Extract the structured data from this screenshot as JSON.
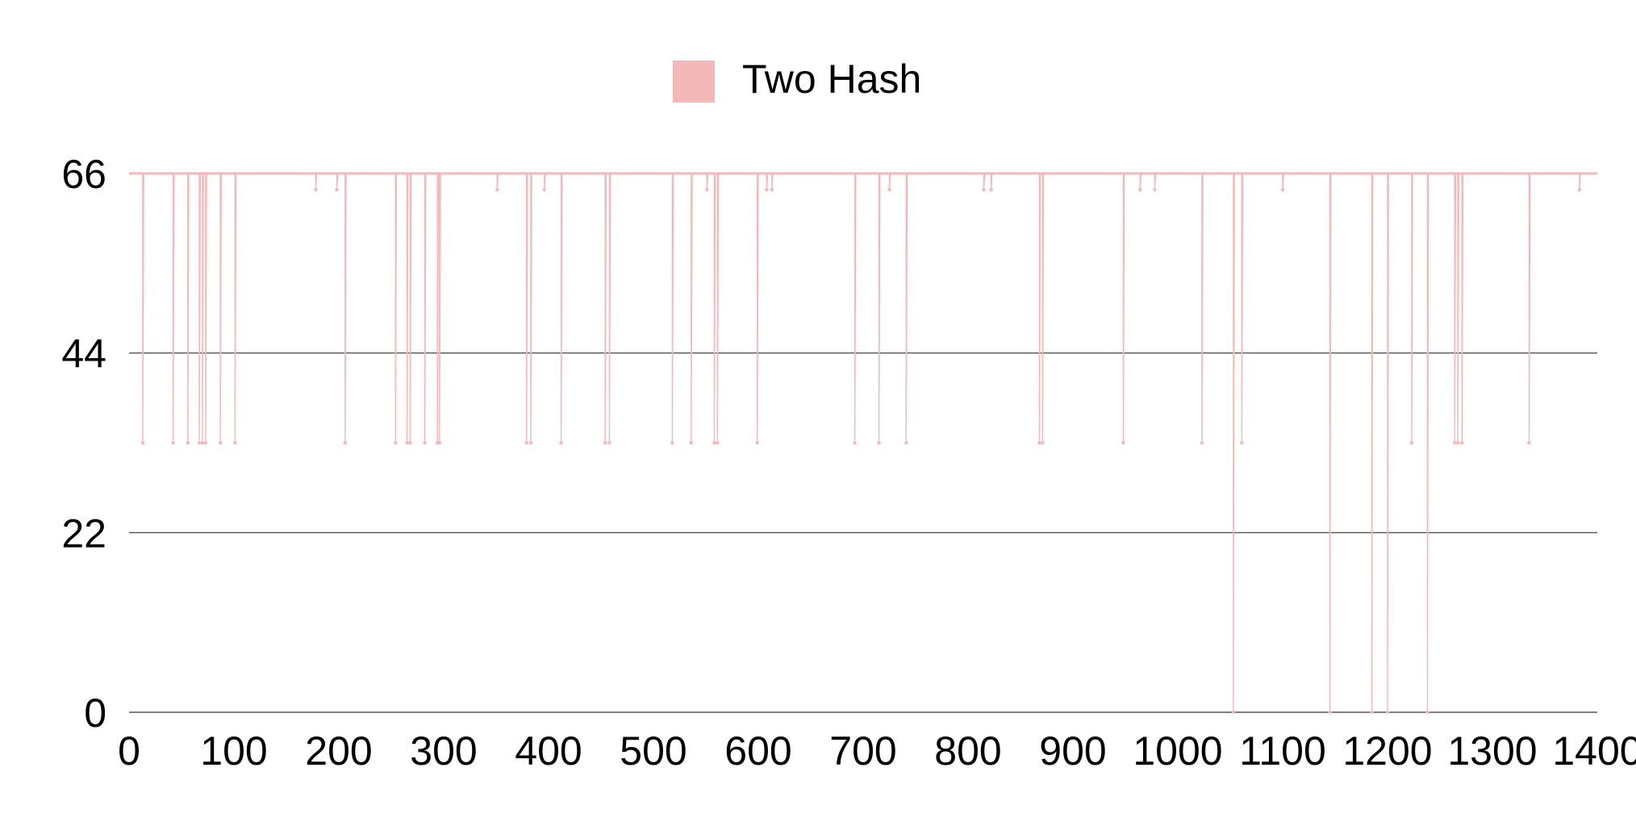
{
  "chart_data": {
    "type": "line",
    "title": "",
    "xlabel": "",
    "ylabel": "",
    "xlim": [
      0,
      1400
    ],
    "ylim": [
      0,
      66
    ],
    "x_ticks": [
      0,
      100,
      200,
      300,
      400,
      500,
      600,
      700,
      800,
      900,
      1000,
      1100,
      1200,
      1300,
      1400
    ],
    "y_ticks": [
      0,
      22,
      44,
      66
    ],
    "grid": "horizontal",
    "legend_position": "top-center",
    "series": [
      {
        "name": "Two Hash",
        "color": "#f5b8b8",
        "baseline": 66,
        "dips": [
          {
            "x": 13,
            "y": 33
          },
          {
            "x": 42,
            "y": 33
          },
          {
            "x": 56,
            "y": 33
          },
          {
            "x": 67,
            "y": 33
          },
          {
            "x": 70,
            "y": 33
          },
          {
            "x": 73,
            "y": 33
          },
          {
            "x": 87,
            "y": 33
          },
          {
            "x": 101,
            "y": 33
          },
          {
            "x": 178,
            "y": 64
          },
          {
            "x": 198,
            "y": 64
          },
          {
            "x": 206,
            "y": 33
          },
          {
            "x": 254,
            "y": 33
          },
          {
            "x": 265,
            "y": 33
          },
          {
            "x": 268,
            "y": 33
          },
          {
            "x": 282,
            "y": 33
          },
          {
            "x": 294,
            "y": 33
          },
          {
            "x": 296,
            "y": 33
          },
          {
            "x": 351,
            "y": 64
          },
          {
            "x": 379,
            "y": 33
          },
          {
            "x": 383,
            "y": 33
          },
          {
            "x": 396,
            "y": 64
          },
          {
            "x": 412,
            "y": 33
          },
          {
            "x": 454,
            "y": 33
          },
          {
            "x": 458,
            "y": 33
          },
          {
            "x": 518,
            "y": 33
          },
          {
            "x": 536,
            "y": 33
          },
          {
            "x": 551,
            "y": 64
          },
          {
            "x": 558,
            "y": 33
          },
          {
            "x": 561,
            "y": 33
          },
          {
            "x": 599,
            "y": 33
          },
          {
            "x": 608,
            "y": 64
          },
          {
            "x": 613,
            "y": 64
          },
          {
            "x": 692,
            "y": 33
          },
          {
            "x": 715,
            "y": 33
          },
          {
            "x": 725,
            "y": 64
          },
          {
            "x": 741,
            "y": 33
          },
          {
            "x": 815,
            "y": 64
          },
          {
            "x": 822,
            "y": 64
          },
          {
            "x": 868,
            "y": 33
          },
          {
            "x": 871,
            "y": 33
          },
          {
            "x": 948,
            "y": 33
          },
          {
            "x": 964,
            "y": 64
          },
          {
            "x": 978,
            "y": 64
          },
          {
            "x": 1023,
            "y": 33
          },
          {
            "x": 1053,
            "y": 0
          },
          {
            "x": 1061,
            "y": 33
          },
          {
            "x": 1100,
            "y": 64
          },
          {
            "x": 1145,
            "y": 0
          },
          {
            "x": 1185,
            "y": 0
          },
          {
            "x": 1200,
            "y": 0
          },
          {
            "x": 1223,
            "y": 33
          },
          {
            "x": 1238,
            "y": 0
          },
          {
            "x": 1264,
            "y": 33
          },
          {
            "x": 1267,
            "y": 33
          },
          {
            "x": 1271,
            "y": 33
          },
          {
            "x": 1335,
            "y": 33
          },
          {
            "x": 1383,
            "y": 64
          }
        ]
      }
    ]
  }
}
